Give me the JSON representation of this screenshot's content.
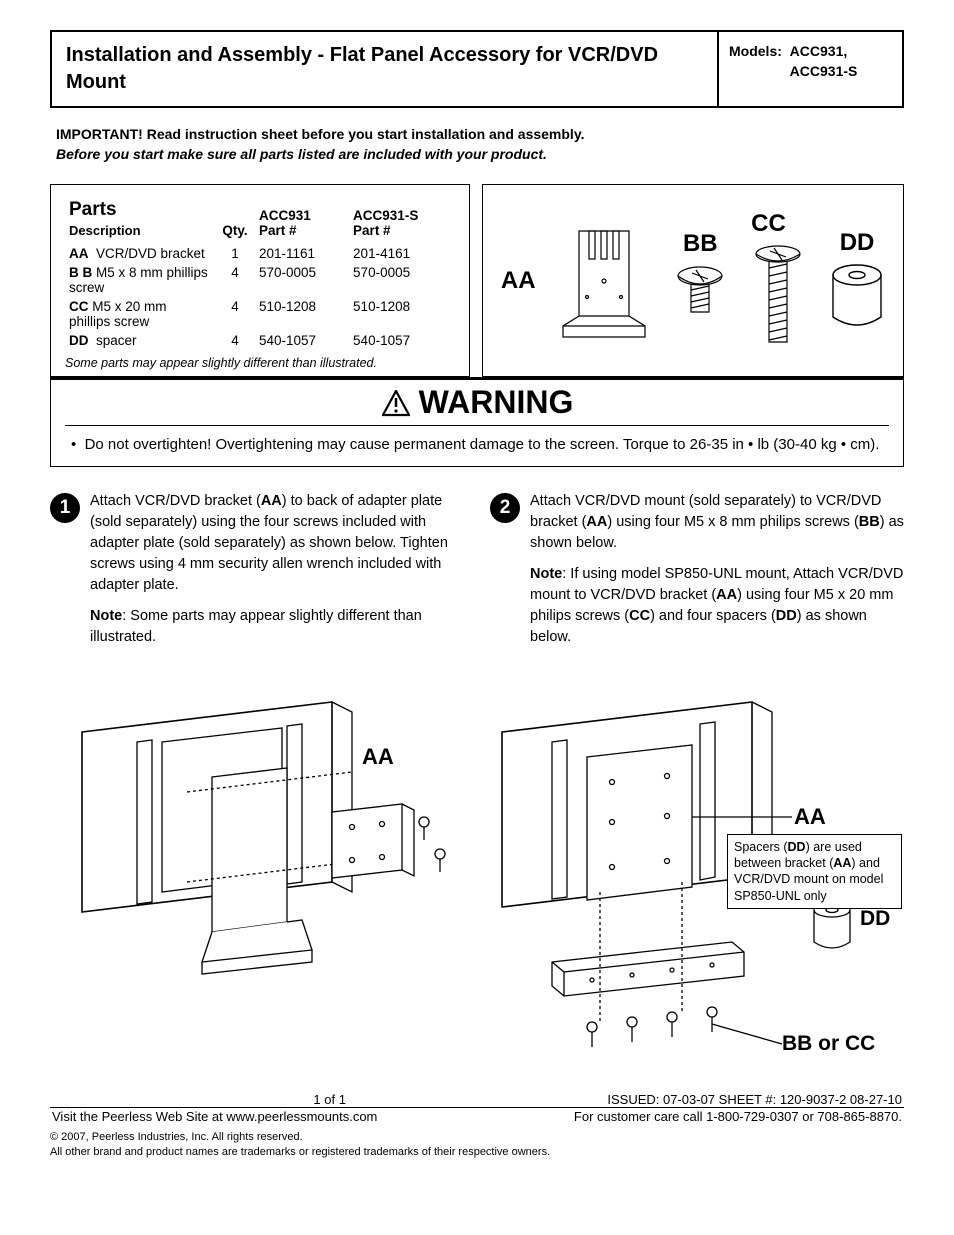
{
  "header": {
    "title": "Installation and Assembly - Flat Panel Accessory for VCR/DVD Mount",
    "models_label": "Models:",
    "models": "ACC931,\nACC931-S"
  },
  "intro": {
    "line1": "IMPORTANT! Read instruction sheet before you start installation and assembly.",
    "line2": "Before you start make sure all parts listed are included with your product."
  },
  "parts": {
    "title": "Parts",
    "col_desc": "Description",
    "col_qty": "Qty.",
    "col_p1": "ACC931\nPart #",
    "col_p2": "ACC931-S\nPart #",
    "rows": [
      {
        "code": "AA",
        "desc": "VCR/DVD bracket",
        "qty": "1",
        "p1": "201-1161",
        "p2": "201-4161"
      },
      {
        "code": "B B",
        "desc": "M5 x 8 mm phillips screw",
        "qty": "4",
        "p1": "570-0005",
        "p2": "570-0005"
      },
      {
        "code": "CC",
        "desc": "M5 x 20 mm phillips screw",
        "qty": "4",
        "p1": "510-1208",
        "p2": "510-1208"
      },
      {
        "code": "DD",
        "desc": "spacer",
        "qty": "4",
        "p1": "540-1057",
        "p2": "540-1057"
      }
    ],
    "note": "Some parts may appear slightly different than illustrated."
  },
  "parts_illus": {
    "aa": "AA",
    "bb": "BB",
    "cc": "CC",
    "dd": "DD"
  },
  "warning": {
    "heading": "WARNING",
    "bullet": "Do not overtighten! Overtightening may cause permanent damage to the screen. Torque to 26-35 in • lb (30-40 kg • cm)."
  },
  "steps": {
    "s1": {
      "num": "1",
      "p1": "Attach VCR/DVD bracket (<b>AA</b>) to back of adapter plate (sold separately) using the four screws included with adapter plate (sold separately) as shown below. Tighten screws using 4 mm security allen wrench included with adapter plate.",
      "p2": "<b>Note</b>: Some parts may appear slightly different than illustrated."
    },
    "s2": {
      "num": "2",
      "p1": " Attach VCR/DVD mount (sold separately) to VCR/DVD bracket (<b>AA</b>) using four M5 x 8 mm philips screws (<b>BB</b>) as shown below.",
      "p2": "<b>Note</b>: If using model SP850-UNL mount, Attach VCR/DVD mount to VCR/DVD bracket (<b>AA</b>) using four M5 x 20 mm philips screws (<b>CC</b>) and four spacers (<b>DD</b>) as shown below."
    }
  },
  "diagram_labels": {
    "d1_aa": "AA",
    "d2_aa": "AA",
    "d2_dd": "DD",
    "d2_bbcc": "BB or CC",
    "callout": "Spacers (<b>DD</b>) are used between bracket (<b>AA</b>) and VCR/DVD mount on model SP850-UNL only"
  },
  "footer": {
    "page": "1 of 1",
    "issued": "ISSUED: 07-03-07  SHEET #: 120-9037-2  08-27-10",
    "web": "Visit the Peerless Web Site at www.peerlessmounts.com",
    "care": "For customer care call 1-800-729-0307 or 708-865-8870.",
    "c1": "© 2007, Peerless Industries, Inc. All rights reserved.",
    "c2": "All other brand and product names are trademarks or registered trademarks of their respective owners."
  }
}
